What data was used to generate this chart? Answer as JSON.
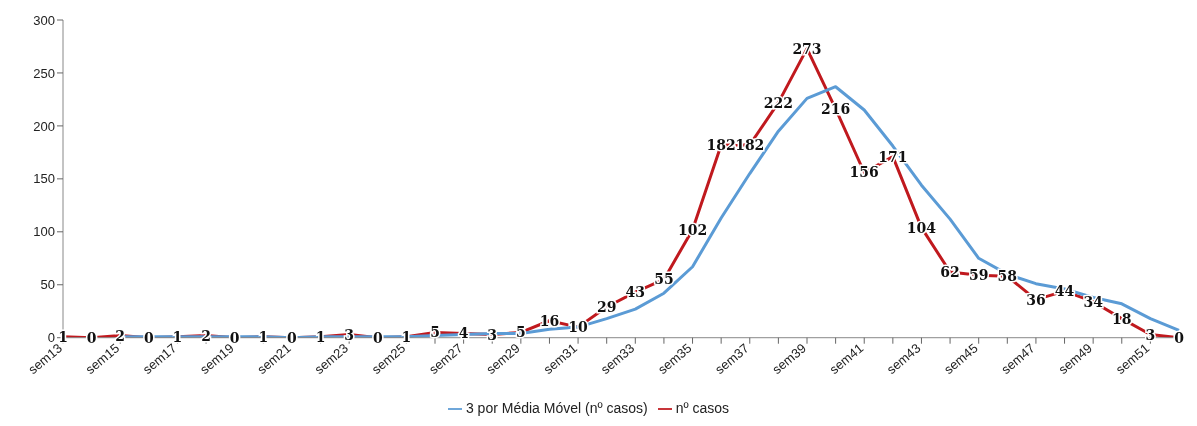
{
  "chart_data": {
    "type": "line",
    "categories": [
      "sem13",
      null,
      "sem15",
      null,
      "sem17",
      null,
      "sem19",
      null,
      "sem21",
      null,
      "sem23",
      null,
      "sem25",
      null,
      "sem27",
      null,
      "sem29",
      null,
      "sem31",
      null,
      "sem33",
      null,
      "sem35",
      null,
      "sem37",
      null,
      "sem39",
      null,
      "sem41",
      null,
      "sem43",
      null,
      "sem45",
      null,
      "sem47",
      null,
      "sem49",
      null,
      "sem51",
      null
    ],
    "series": [
      {
        "name": "nº casos",
        "color": "#c0191e",
        "values": [
          1,
          0,
          2,
          0,
          1,
          2,
          0,
          1,
          0,
          1,
          3,
          0,
          1,
          5,
          4,
          3,
          5,
          16,
          10,
          29,
          43,
          55,
          102,
          182,
          182,
          222,
          273,
          216,
          156,
          171,
          104,
          62,
          59,
          58,
          36,
          44,
          34,
          18,
          3,
          0
        ],
        "value_labels": [
          "1",
          "0",
          "2",
          "0",
          "1",
          "2",
          "0",
          "1",
          "0",
          "1",
          "3",
          "0",
          "1",
          "5",
          "4",
          "3",
          "5",
          "16",
          "10",
          "29",
          "43",
          "55",
          "102",
          "182",
          "182",
          "222",
          "273",
          "216",
          "156",
          "171",
          "104",
          "62",
          "59",
          "58",
          "36",
          "44",
          "34",
          "18",
          "3",
          "0"
        ]
      },
      {
        "name": "3 por Média Móvel (nº casos)",
        "color": "#5b9bd5",
        "values": [
          null,
          null,
          1,
          1,
          1,
          1,
          1,
          1,
          0,
          1,
          1,
          1,
          1,
          2,
          3,
          4,
          4,
          8,
          10,
          18,
          27,
          42,
          67,
          113,
          155,
          195,
          226,
          237,
          215,
          181,
          144,
          112,
          75,
          60,
          51,
          46,
          38,
          32,
          18,
          7
        ]
      }
    ],
    "ylim": [
      0,
      300
    ],
    "yticks": [
      0,
      50,
      100,
      150,
      200,
      250,
      300
    ],
    "grid": false,
    "legend": "bottom",
    "marker": "none",
    "line_style": "solid"
  }
}
